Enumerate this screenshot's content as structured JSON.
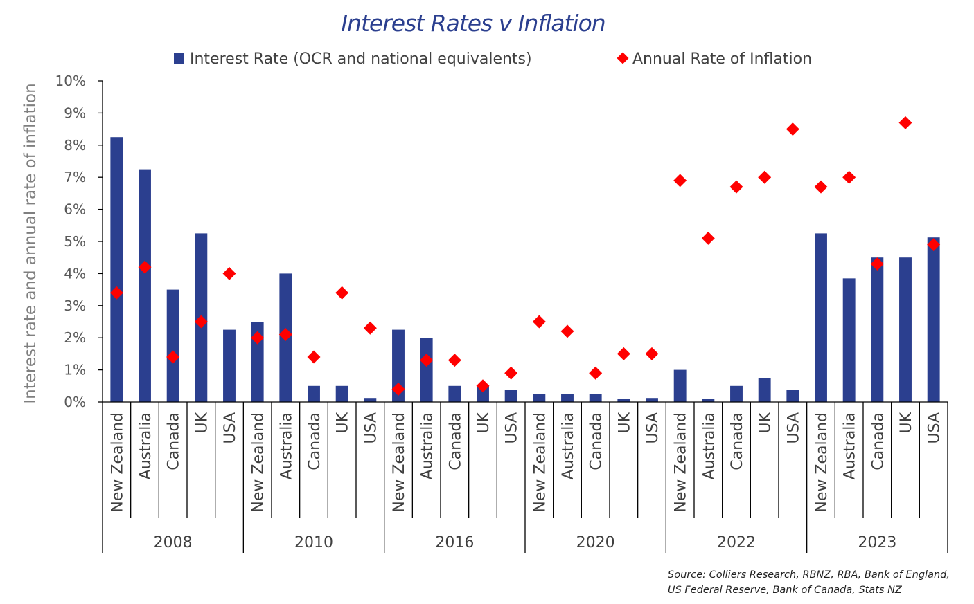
{
  "chart_data": {
    "type": "bar",
    "title": "Interest Rates v Inflation",
    "ylabel": "Interest rate and annual rate of inflation",
    "xlabel": "",
    "ylim": [
      0,
      10
    ],
    "y_ticks": [
      "0%",
      "1%",
      "2%",
      "3%",
      "4%",
      "5%",
      "6%",
      "7%",
      "8%",
      "9%",
      "10%"
    ],
    "legend_position": "top",
    "groups": [
      {
        "year": "2008",
        "categories": [
          "New Zealand",
          "Australia",
          "Canada",
          "UK",
          "USA"
        ]
      },
      {
        "year": "2010",
        "categories": [
          "New Zealand",
          "Australia",
          "Canada",
          "UK",
          "USA"
        ]
      },
      {
        "year": "2016",
        "categories": [
          "New Zealand",
          "Australia",
          "Canada",
          "UK",
          "USA"
        ]
      },
      {
        "year": "2020",
        "categories": [
          "New Zealand",
          "Australia",
          "Canada",
          "UK",
          "USA"
        ]
      },
      {
        "year": "2022",
        "categories": [
          "New Zealand",
          "Australia",
          "Canada",
          "UK",
          "USA"
        ]
      },
      {
        "year": "2023",
        "categories": [
          "New Zealand",
          "Australia",
          "Canada",
          "UK",
          "USA"
        ]
      }
    ],
    "series": [
      {
        "name": "Interest Rate (OCR and national equivalents)",
        "kind": "bar",
        "color": "#2b3f8f",
        "values": [
          8.25,
          7.25,
          3.5,
          5.25,
          2.25,
          2.5,
          4.0,
          0.5,
          0.5,
          0.125,
          2.25,
          2.0,
          0.5,
          0.5,
          0.375,
          0.25,
          0.25,
          0.25,
          0.1,
          0.125,
          1.0,
          0.1,
          0.5,
          0.75,
          0.375,
          5.25,
          3.85,
          4.5,
          4.5,
          5.125
        ]
      },
      {
        "name": "Annual Rate of Inflation",
        "kind": "marker",
        "color": "#ff0000",
        "values": [
          3.4,
          4.2,
          1.4,
          2.5,
          4.0,
          2.0,
          2.1,
          1.4,
          3.4,
          2.3,
          0.4,
          1.3,
          1.3,
          0.5,
          0.9,
          2.5,
          2.2,
          0.9,
          1.5,
          1.5,
          6.9,
          5.1,
          6.7,
          7.0,
          8.5,
          6.7,
          7.0,
          4.3,
          8.7,
          4.9
        ]
      }
    ]
  },
  "source": {
    "line1": "Source: Colliers Research, RBNZ, RBA, Bank of England,",
    "line2": "US Federal Reserve, Bank of Canada, Stats NZ"
  }
}
